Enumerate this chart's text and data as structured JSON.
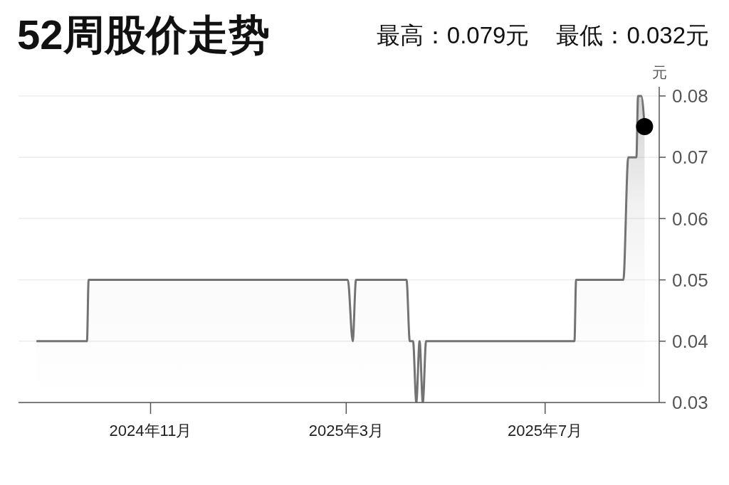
{
  "chart_data": {
    "type": "area",
    "title": "52周股价走势",
    "annotations": [
      "最高：0.079元",
      "最低：0.032元"
    ],
    "ylabel": "元",
    "series": [
      {
        "color": "#737373",
        "x": [
          "2024-08-23",
          "2024-09-23",
          "2024-09-24",
          "2025-03-02",
          "2025-03-05",
          "2025-03-07",
          "2025-04-07",
          "2025-04-09",
          "2025-04-11",
          "2025-04-13",
          "2025-04-15",
          "2025-04-17",
          "2025-04-19",
          "2025-07-19",
          "2025-07-20",
          "2025-08-18",
          "2025-08-21",
          "2025-08-26",
          "2025-08-27",
          "2025-08-29",
          "2025-08-31"
        ],
        "values": [
          0.04,
          0.04,
          0.05,
          0.05,
          0.04,
          0.05,
          0.05,
          0.04,
          0.04,
          0.03,
          0.04,
          0.03,
          0.04,
          0.04,
          0.05,
          0.05,
          0.07,
          0.07,
          0.08,
          0.08,
          0.075
        ]
      },
      {
        "type": "scatter",
        "color": "#000000",
        "marker": "circle",
        "x": [
          "2025-08-31"
        ],
        "values": [
          0.075
        ]
      }
    ],
    "xlim": [
      "2024-08-12",
      "2025-09-09"
    ],
    "xticks": [
      {
        "value": "2024-11-01",
        "label": "2024年11月"
      },
      {
        "value": "2025-03-01",
        "label": "2025年3月"
      },
      {
        "value": "2025-07-01",
        "label": "2025年7月"
      }
    ],
    "ylim": [
      0.03,
      0.0815
    ],
    "yticks": [
      0.03,
      0.04,
      0.05,
      0.06,
      0.07,
      0.08
    ],
    "grid": "y"
  }
}
